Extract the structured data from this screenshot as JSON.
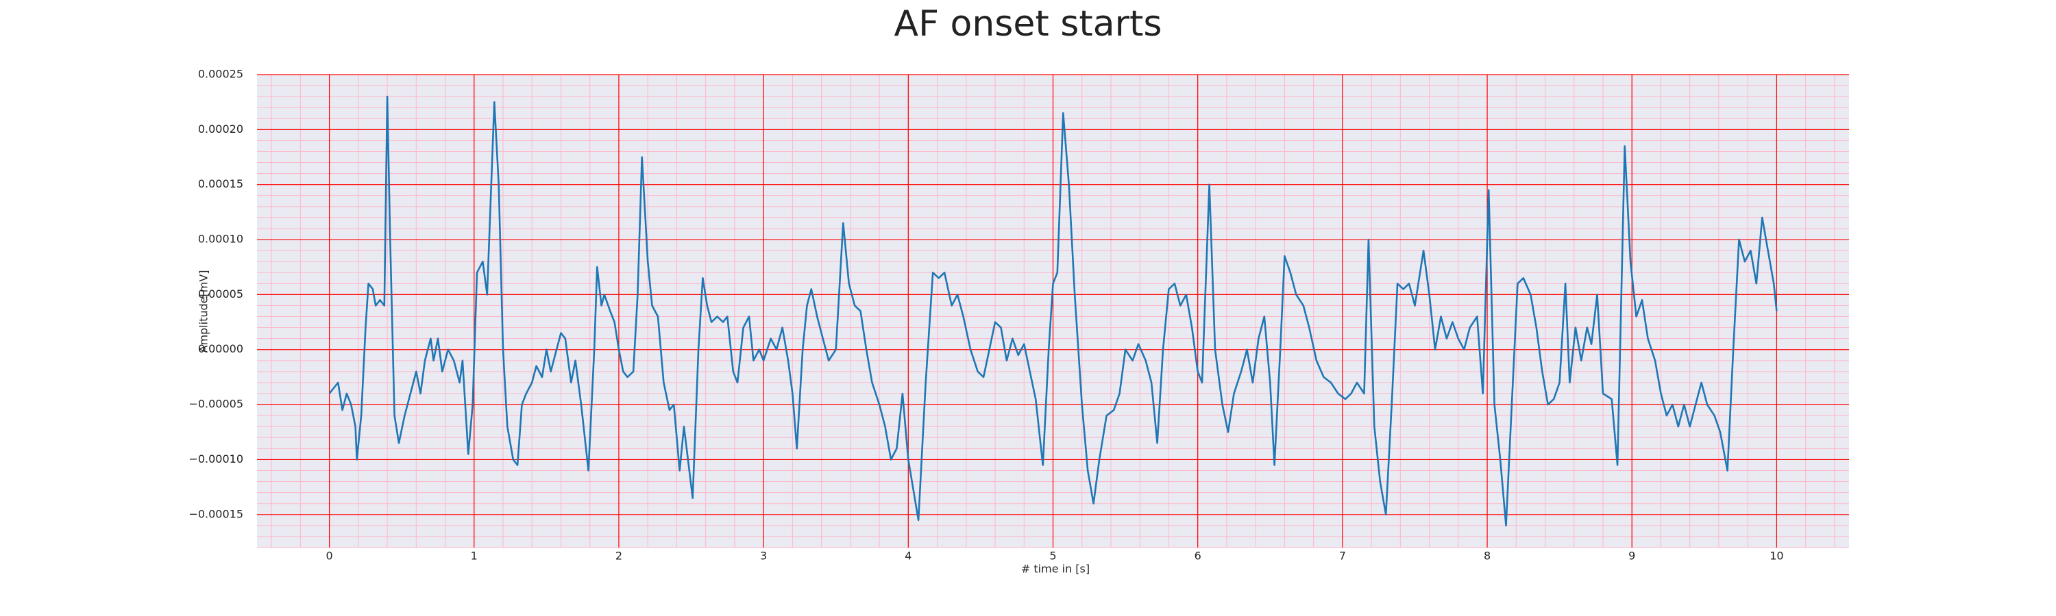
{
  "chart_data": {
    "type": "line",
    "title": "AF onset starts",
    "xlabel": "# time in [s]",
    "ylabel": "Amplitude[mV]",
    "x": [
      0,
      0.03,
      0.06,
      0.09,
      0.12,
      0.15,
      0.18,
      0.19,
      0.22,
      0.25,
      0.27,
      0.3,
      0.32,
      0.35,
      0.38,
      0.4,
      0.42,
      0.45,
      0.48,
      0.52,
      0.56,
      0.6,
      0.63,
      0.66,
      0.7,
      0.72,
      0.75,
      0.78,
      0.82,
      0.86,
      0.9,
      0.92,
      0.96,
      0.99,
      1.02,
      1.06,
      1.09,
      1.14,
      1.17,
      1.2,
      1.23,
      1.27,
      1.3,
      1.33,
      1.36,
      1.4,
      1.43,
      1.47,
      1.5,
      1.53,
      1.57,
      1.6,
      1.63,
      1.67,
      1.7,
      1.74,
      1.79,
      1.83,
      1.85,
      1.88,
      1.9,
      1.94,
      1.97,
      2,
      2.03,
      2.06,
      2.1,
      2.13,
      2.16,
      2.2,
      2.23,
      2.27,
      2.31,
      2.35,
      2.38,
      2.42,
      2.45,
      2.51,
      2.55,
      2.58,
      2.61,
      2.64,
      2.68,
      2.72,
      2.75,
      2.79,
      2.82,
      2.86,
      2.9,
      2.93,
      2.97,
      3,
      3.05,
      3.09,
      3.13,
      3.17,
      3.2,
      3.23,
      3.27,
      3.3,
      3.33,
      3.37,
      3.41,
      3.45,
      3.5,
      3.55,
      3.59,
      3.63,
      3.67,
      3.71,
      3.75,
      3.8,
      3.84,
      3.88,
      3.92,
      3.96,
      4,
      4.07,
      4.12,
      4.17,
      4.21,
      4.25,
      4.3,
      4.34,
      4.38,
      4.43,
      4.48,
      4.52,
      4.56,
      4.6,
      4.64,
      4.68,
      4.72,
      4.76,
      4.8,
      4.84,
      4.88,
      4.93,
      4.97,
      5,
      5.03,
      5.07,
      5.11,
      5.15,
      5.2,
      5.24,
      5.28,
      5.32,
      5.37,
      5.42,
      5.46,
      5.5,
      5.55,
      5.59,
      5.64,
      5.68,
      5.72,
      5.76,
      5.8,
      5.84,
      5.88,
      5.92,
      5.96,
      6,
      6.03,
      6.08,
      6.12,
      6.17,
      6.21,
      6.25,
      6.3,
      6.34,
      6.38,
      6.42,
      6.46,
      6.5,
      6.53,
      6.57,
      6.6,
      6.64,
      6.68,
      6.73,
      6.77,
      6.82,
      6.87,
      6.92,
      6.97,
      7.02,
      7.06,
      7.1,
      7.15,
      7.18,
      7.22,
      7.26,
      7.3,
      7.34,
      7.38,
      7.42,
      7.46,
      7.5,
      7.56,
      7.6,
      7.64,
      7.68,
      7.72,
      7.76,
      7.8,
      7.84,
      7.88,
      7.93,
      7.97,
      8.01,
      8.05,
      8.09,
      8.13,
      8.17,
      8.21,
      8.25,
      8.3,
      8.34,
      8.38,
      8.42,
      8.46,
      8.5,
      8.54,
      8.57,
      8.61,
      8.65,
      8.69,
      8.72,
      8.76,
      8.8,
      8.86,
      8.9,
      8.95,
      8.99,
      9.03,
      9.07,
      9.11,
      9.16,
      9.2,
      9.24,
      9.28,
      9.32,
      9.36,
      9.4,
      9.44,
      9.48,
      9.52,
      9.57,
      9.61,
      9.66,
      9.7,
      9.74,
      9.78,
      9.82,
      9.86,
      9.9,
      9.94,
      9.98,
      10
    ],
    "values": [
      -4e-05,
      -3.5e-05,
      -3e-05,
      -5.5e-05,
      -4e-05,
      -5e-05,
      -7e-05,
      -0.0001,
      -6e-05,
      2e-05,
      6e-05,
      5.5e-05,
      4e-05,
      4.5e-05,
      4e-05,
      0.00023,
      0.0001,
      -6e-05,
      -8.5e-05,
      -6e-05,
      -4e-05,
      -2e-05,
      -4e-05,
      -1e-05,
      1e-05,
      -1e-05,
      1e-05,
      -2e-05,
      0,
      -1e-05,
      -3e-05,
      -1e-05,
      -9.5e-05,
      -5e-05,
      7e-05,
      8e-05,
      5e-05,
      0.000225,
      0.00015,
      0,
      -7e-05,
      -0.0001,
      -0.000105,
      -5e-05,
      -4e-05,
      -3e-05,
      -1.5e-05,
      -2.5e-05,
      0,
      -2e-05,
      0,
      1.5e-05,
      1e-05,
      -3e-05,
      -1e-05,
      -5e-05,
      -0.00011,
      0,
      7.5e-05,
      4e-05,
      5e-05,
      3.5e-05,
      2.5e-05,
      0,
      -2e-05,
      -2.5e-05,
      -2e-05,
      5e-05,
      0.000175,
      8e-05,
      4e-05,
      3e-05,
      -3e-05,
      -5.5e-05,
      -5e-05,
      -0.00011,
      -7e-05,
      -0.000135,
      0,
      6.5e-05,
      4e-05,
      2.5e-05,
      3e-05,
      2.5e-05,
      3e-05,
      -2e-05,
      -3e-05,
      2e-05,
      3e-05,
      -1e-05,
      0,
      -1e-05,
      1e-05,
      0,
      2e-05,
      -1e-05,
      -4e-05,
      -9e-05,
      0,
      4e-05,
      5.5e-05,
      3e-05,
      1e-05,
      -1e-05,
      0,
      0.000115,
      6e-05,
      4e-05,
      3.5e-05,
      0,
      -3e-05,
      -5e-05,
      -7e-05,
      -0.0001,
      -9e-05,
      -4e-05,
      -0.0001,
      -0.000155,
      -3e-05,
      7e-05,
      6.5e-05,
      7e-05,
      4e-05,
      5e-05,
      3e-05,
      0,
      -2e-05,
      -2.5e-05,
      0,
      2.5e-05,
      2e-05,
      -1e-05,
      1e-05,
      -5e-06,
      5e-06,
      -2e-05,
      -4.5e-05,
      -0.000105,
      0,
      6e-05,
      7e-05,
      0.000215,
      0.00015,
      5e-05,
      -5e-05,
      -0.00011,
      -0.00014,
      -0.0001,
      -6e-05,
      -5.5e-05,
      -4e-05,
      0,
      -1e-05,
      5e-06,
      -1e-05,
      -3e-05,
      -8.5e-05,
      0,
      5.5e-05,
      6e-05,
      4e-05,
      5e-05,
      2e-05,
      -2e-05,
      -3e-05,
      0.00015,
      0,
      -5e-05,
      -7.5e-05,
      -4e-05,
      -2e-05,
      0,
      -3e-05,
      1e-05,
      3e-05,
      -3e-05,
      -0.000105,
      0,
      8.5e-05,
      7e-05,
      5e-05,
      4e-05,
      2e-05,
      -1e-05,
      -2.5e-05,
      -3e-05,
      -4e-05,
      -4.5e-05,
      -4e-05,
      -3e-05,
      -4e-05,
      0.0001,
      -7e-05,
      -0.00012,
      -0.00015,
      -5e-05,
      6e-05,
      5.5e-05,
      6e-05,
      4e-05,
      9e-05,
      5e-05,
      0,
      3e-05,
      1e-05,
      2.5e-05,
      1e-05,
      0,
      2e-05,
      3e-05,
      -4e-05,
      0.000145,
      -5e-05,
      -0.0001,
      -0.00016,
      -5e-05,
      6e-05,
      6.5e-05,
      5e-05,
      2e-05,
      -2e-05,
      -5e-05,
      -4.5e-05,
      -3e-05,
      6e-05,
      -3e-05,
      2e-05,
      -1e-05,
      2e-05,
      5e-06,
      5e-05,
      -4e-05,
      -4.5e-05,
      -0.000105,
      0.000185,
      8e-05,
      3e-05,
      4.5e-05,
      1e-05,
      -1e-05,
      -4e-05,
      -6e-05,
      -5e-05,
      -7e-05,
      -5e-05,
      -7e-05,
      -5e-05,
      -3e-05,
      -5e-05,
      -6e-05,
      -7.5e-05,
      -0.00011,
      0,
      0.0001,
      8e-05,
      9e-05,
      6e-05,
      0.00012,
      9e-05,
      6e-05,
      3.5e-05
    ],
    "color": "#1f77b4",
    "xlim": [
      -0.5,
      10.5
    ],
    "ylim": [
      -0.00018,
      0.00025
    ],
    "xticks": [
      0,
      1,
      2,
      3,
      4,
      5,
      6,
      7,
      8,
      9,
      10
    ],
    "yticks": [
      {
        "value": 0.00025,
        "label": "0.00025"
      },
      {
        "value": 0.0002,
        "label": "0.00020"
      },
      {
        "value": 0.00015,
        "label": "0.00015"
      },
      {
        "value": 0.0001,
        "label": "0.00010"
      },
      {
        "value": 5e-05,
        "label": "0.00005"
      },
      {
        "value": 0,
        "label": "0.00000"
      },
      {
        "value": -5e-05,
        "label": "−0.00005"
      },
      {
        "value": -0.0001,
        "label": "−0.00010"
      },
      {
        "value": -0.00015,
        "label": "−0.00015"
      }
    ],
    "grid": true,
    "grid_color": "#ff0000",
    "minor_grid": {
      "x": 0.2,
      "y": 1e-05
    },
    "minor_grid_color": "#ffb6c8",
    "background": "#eaeaf2"
  }
}
